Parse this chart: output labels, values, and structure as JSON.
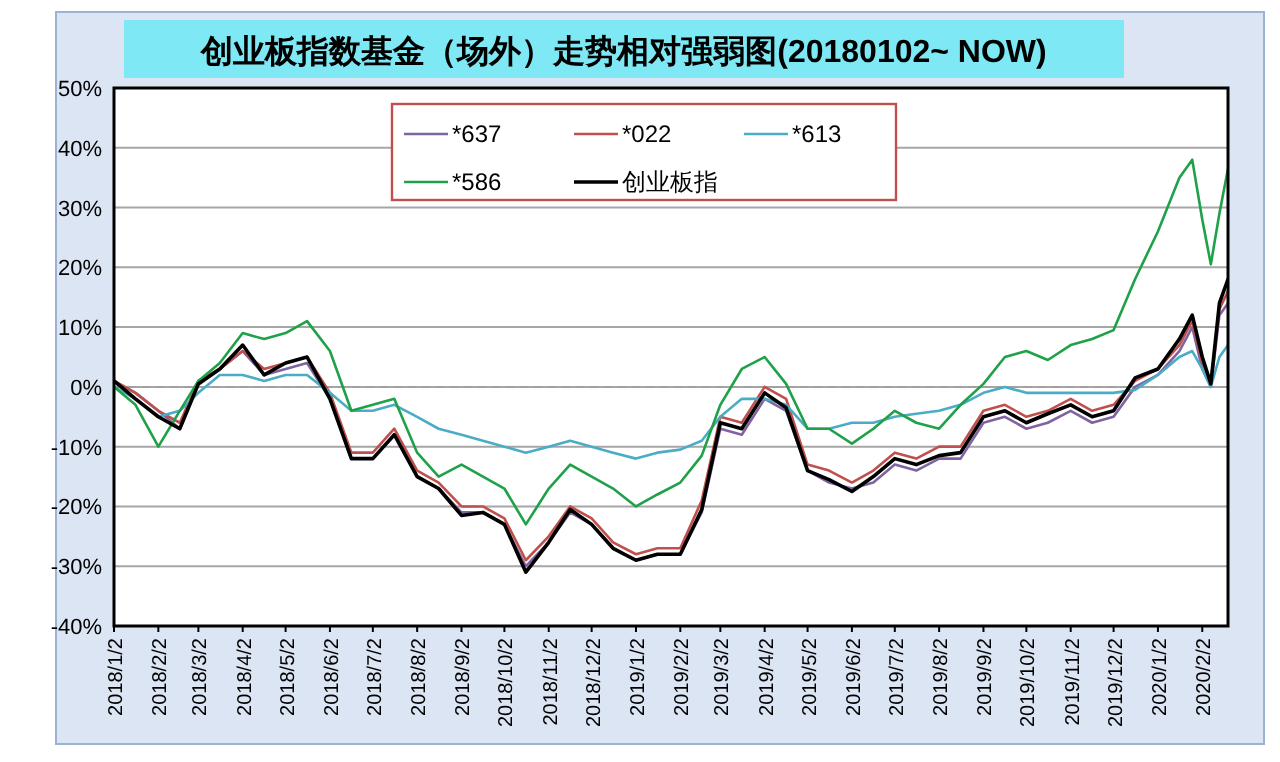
{
  "chart_data": {
    "type": "line",
    "title": "创业板指数基金（场外）走势相对强弱图(20180102~ NOW)",
    "x": [
      "2018-01-02",
      "2018-01-17",
      "2018-02-02",
      "2018-02-17",
      "2018-03-02",
      "2018-03-17",
      "2018-04-02",
      "2018-04-17",
      "2018-05-02",
      "2018-05-17",
      "2018-06-02",
      "2018-06-17",
      "2018-07-02",
      "2018-07-17",
      "2018-08-02",
      "2018-08-17",
      "2018-09-02",
      "2018-09-17",
      "2018-10-02",
      "2018-10-17",
      "2018-11-02",
      "2018-11-17",
      "2018-12-02",
      "2018-12-17",
      "2019-01-02",
      "2019-01-17",
      "2019-02-02",
      "2019-02-17",
      "2019-03-02",
      "2019-03-17",
      "2019-04-02",
      "2019-04-17",
      "2019-05-02",
      "2019-05-17",
      "2019-06-02",
      "2019-06-17",
      "2019-07-02",
      "2019-07-17",
      "2019-08-02",
      "2019-08-17",
      "2019-09-02",
      "2019-09-17",
      "2019-10-02",
      "2019-10-17",
      "2019-11-02",
      "2019-11-17",
      "2019-12-02",
      "2019-12-17",
      "2020-01-02",
      "2020-01-17",
      "2020-01-26",
      "2020-02-02",
      "2020-02-08",
      "2020-02-14",
      "2020-02-20"
    ],
    "series": [
      {
        "name": "*637",
        "color": "#8064a2",
        "values": [
          1,
          -1,
          -4,
          -7,
          1,
          3,
          6,
          2,
          3,
          4,
          -2,
          -12,
          -12,
          -8,
          -15,
          -17,
          -21,
          -21,
          -23,
          -30,
          -26,
          -21,
          -23,
          -27,
          -29,
          -28,
          -28,
          -21,
          -7,
          -8,
          -2,
          -4,
          -14,
          -16,
          -17,
          -16,
          -13,
          -14,
          -12,
          -12,
          -6,
          -5,
          -7,
          -6,
          -4,
          -6,
          -5,
          0,
          2,
          6,
          10,
          3,
          0,
          12,
          14
        ]
      },
      {
        "name": "*022",
        "color": "#c0504d",
        "values": [
          1,
          -1,
          -4,
          -6,
          1,
          3,
          6,
          3,
          4,
          5,
          -1,
          -11,
          -11,
          -7,
          -14,
          -16,
          -20,
          -20,
          -22,
          -29,
          -25,
          -20,
          -22,
          -26,
          -28,
          -27,
          -27,
          -19,
          -5,
          -6,
          0,
          -2,
          -13,
          -14,
          -16,
          -14,
          -11,
          -12,
          -10,
          -10,
          -4,
          -3,
          -5,
          -4,
          -2,
          -4,
          -3,
          1,
          3,
          7,
          11,
          4,
          1,
          13,
          16
        ]
      },
      {
        "name": "*613",
        "color": "#4bacc6",
        "values": [
          0,
          -2,
          -5,
          -4,
          -1,
          2,
          2,
          1,
          2,
          2,
          -1,
          -4,
          -4,
          -3,
          -5,
          -7,
          -8,
          -9,
          -10,
          -11,
          -10,
          -9,
          -10,
          -11,
          -12,
          -11,
          -10.5,
          -9,
          -5,
          -2,
          -2,
          -3,
          -7,
          -7,
          -6,
          -6,
          -5,
          -4.5,
          -4,
          -3,
          -1,
          0,
          -1,
          -1,
          -1,
          -1,
          -1,
          -0.5,
          2,
          5,
          6,
          3,
          0,
          5,
          7
        ]
      },
      {
        "name": "*586",
        "color": "#1fa149",
        "values": [
          0,
          -3,
          -10,
          -4,
          1,
          4,
          9,
          8,
          9,
          11,
          6,
          -4,
          -3,
          -2,
          -11,
          -15,
          -13,
          -15,
          -17,
          -23,
          -17,
          -13,
          -15,
          -17,
          -20,
          -18,
          -16,
          -11.5,
          -3,
          3,
          5,
          0.5,
          -7,
          -7,
          -9.5,
          -7,
          -4,
          -6,
          -7,
          -3,
          0.5,
          5,
          6,
          4.5,
          7,
          8,
          9.5,
          18,
          26,
          35,
          38,
          28,
          20.5,
          29,
          36.5
        ]
      },
      {
        "name": "创业板指",
        "color": "#000000",
        "values": [
          1,
          -2,
          -5,
          -7,
          0.5,
          3,
          7,
          2,
          4,
          5,
          -2,
          -12,
          -12,
          -8,
          -15,
          -17,
          -21.5,
          -21,
          -23,
          -31,
          -26,
          -20.5,
          -23,
          -27,
          -29,
          -28,
          -28,
          -20.5,
          -6,
          -7,
          -1,
          -3.5,
          -14,
          -15.5,
          -17.5,
          -15,
          -12,
          -13,
          -11.5,
          -11,
          -5,
          -4,
          -6,
          -4.5,
          -3,
          -5,
          -4,
          1.5,
          3,
          8,
          12,
          5,
          0.5,
          14,
          18
        ]
      }
    ],
    "ylim": [
      -40,
      50
    ],
    "yticks": [
      {
        "value": -40,
        "label": "-40%"
      },
      {
        "value": -30,
        "label": "-30%"
      },
      {
        "value": -20,
        "label": "-20%"
      },
      {
        "value": -10,
        "label": "-10%"
      },
      {
        "value": 0,
        "label": "0%"
      },
      {
        "value": 10,
        "label": "10%"
      },
      {
        "value": 20,
        "label": "20%"
      },
      {
        "value": 30,
        "label": "30%"
      },
      {
        "value": 40,
        "label": "40%"
      },
      {
        "value": 50,
        "label": "50%"
      }
    ],
    "xlim": [
      "2018-01-02",
      "2020-02-20"
    ],
    "xticks": [
      {
        "value": "2018-01-02",
        "label": "2018/1/2"
      },
      {
        "value": "2018-02-02",
        "label": "2018/2/2"
      },
      {
        "value": "2018-03-02",
        "label": "2018/3/2"
      },
      {
        "value": "2018-04-02",
        "label": "2018/4/2"
      },
      {
        "value": "2018-05-02",
        "label": "2018/5/2"
      },
      {
        "value": "2018-06-02",
        "label": "2018/6/2"
      },
      {
        "value": "2018-07-02",
        "label": "2018/7/2"
      },
      {
        "value": "2018-08-02",
        "label": "2018/8/2"
      },
      {
        "value": "2018-09-02",
        "label": "2018/9/2"
      },
      {
        "value": "2018-10-02",
        "label": "2018/10/2"
      },
      {
        "value": "2018-11-02",
        "label": "2018/11/2"
      },
      {
        "value": "2018-12-02",
        "label": "2018/12/2"
      },
      {
        "value": "2019-01-02",
        "label": "2019/1/2"
      },
      {
        "value": "2019-02-02",
        "label": "2019/2/2"
      },
      {
        "value": "2019-03-02",
        "label": "2019/3/2"
      },
      {
        "value": "2019-04-02",
        "label": "2019/4/2"
      },
      {
        "value": "2019-05-02",
        "label": "2019/5/2"
      },
      {
        "value": "2019-06-02",
        "label": "2019/6/2"
      },
      {
        "value": "2019-07-02",
        "label": "2019/7/2"
      },
      {
        "value": "2019-08-02",
        "label": "2019/8/2"
      },
      {
        "value": "2019-09-02",
        "label": "2019/9/2"
      },
      {
        "value": "2019-10-02",
        "label": "2019/10/2"
      },
      {
        "value": "2019-11-02",
        "label": "2019/11/2"
      },
      {
        "value": "2019-12-02",
        "label": "2019/12/2"
      },
      {
        "value": "2020-01-02",
        "label": "2020/1/2"
      },
      {
        "value": "2020-02-02",
        "label": "2020/2/2"
      }
    ],
    "ref_lines": [
      {
        "axis": "y",
        "value": 0,
        "color": "#a0a0a0",
        "line_style": "dashed"
      }
    ],
    "grid": "y",
    "legend": "top",
    "marker": "none",
    "line_style": "solid"
  }
}
